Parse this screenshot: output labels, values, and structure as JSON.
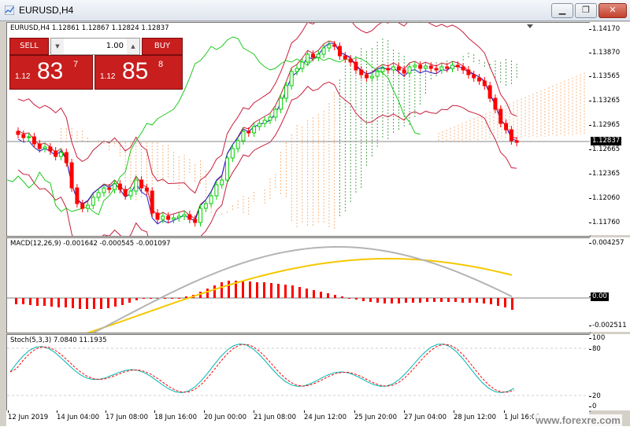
{
  "window": {
    "title": "EURUSD,H4",
    "buttons": [
      "minimize",
      "restore",
      "close"
    ]
  },
  "chart": {
    "ohlc_label": "EURUSD,H4  1.12861 1.12867 1.12824 1.12837",
    "current_price": "1.12837",
    "price_ticks": [
      "1.14170",
      "1.13870",
      "1.13565",
      "1.13265",
      "1.12965",
      "1.12665",
      "1.12365",
      "1.12060",
      "1.11760"
    ]
  },
  "trading": {
    "sell_label": "SELL",
    "buy_label": "BUY",
    "lot_value": "1.00",
    "sell_price": {
      "prefix": "1.12",
      "big": "83",
      "sup": "7"
    },
    "buy_price": {
      "prefix": "1.12",
      "big": "85",
      "sup": "8"
    }
  },
  "macd": {
    "label": "MACD(12,26,9) -0.001642 -0.000545 -0.001097",
    "ticks": [
      "0.004257",
      "0.00",
      "-0.002511"
    ]
  },
  "stoch": {
    "label": "Stoch(5,3,3) 7.0840 11.1935",
    "ticks": [
      "100",
      "80",
      "20",
      "0"
    ]
  },
  "time_axis": [
    "12 Jun 2019",
    "14 Jun 04:00",
    "17 Jun 08:00",
    "18 Jun 16:00",
    "20 Jun 00:00",
    "21 Jun 08:00",
    "24 Jun 12:00",
    "25 Jun 20:00",
    "27 Jun 04:00",
    "28 Jun 12:00",
    "1 Jul 16:00"
  ],
  "watermark": "www.forexre.com",
  "colors": {
    "bull": "#00d000",
    "bear": "#ff0000",
    "macd_signal": "#f5c800",
    "macd_main": "#b4b4b4",
    "stoch_main": "#00b4b4",
    "stoch_signal": "#ff0000",
    "trade_red": "#c81e1e"
  }
}
